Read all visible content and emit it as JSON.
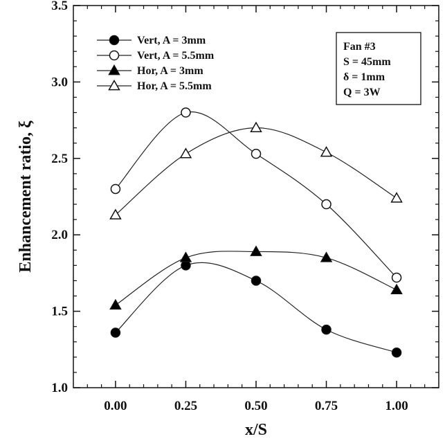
{
  "chart_data": {
    "type": "line",
    "xlabel": "x/S",
    "ylabel": "Enhancement ratio, ξ",
    "xlim": [
      -0.15,
      1.15
    ],
    "ylim": [
      1.0,
      3.5
    ],
    "x_ticks": [
      "0.00",
      "0.25",
      "0.50",
      "0.75",
      "1.00"
    ],
    "y_ticks": [
      "1.0",
      "1.5",
      "2.0",
      "2.5",
      "3.0",
      "3.5"
    ],
    "x": [
      0.0,
      0.25,
      0.5,
      0.75,
      1.0
    ],
    "series": [
      {
        "name": "Vert, A = 3mm",
        "marker": "circle",
        "fill": "#000000",
        "values": [
          1.36,
          1.8,
          1.7,
          1.38,
          1.23
        ]
      },
      {
        "name": "Vert, A = 5.5mm",
        "marker": "circle",
        "fill": "#ffffff",
        "values": [
          2.3,
          2.8,
          2.53,
          2.2,
          1.72
        ]
      },
      {
        "name": "Hor, A = 3mm",
        "marker": "triangle",
        "fill": "#000000",
        "values": [
          1.54,
          1.85,
          1.89,
          1.85,
          1.64
        ]
      },
      {
        "name": "Hor, A = 5.5mm",
        "marker": "triangle",
        "fill": "#ffffff",
        "values": [
          2.13,
          2.53,
          2.7,
          2.54,
          2.24
        ]
      }
    ],
    "legend_position": "top-left",
    "grid": false,
    "annotation": {
      "lines": [
        "Fan #3",
        "S = 45mm",
        "δ = 1mm",
        "Q = 3W"
      ],
      "position": "top-right"
    }
  }
}
